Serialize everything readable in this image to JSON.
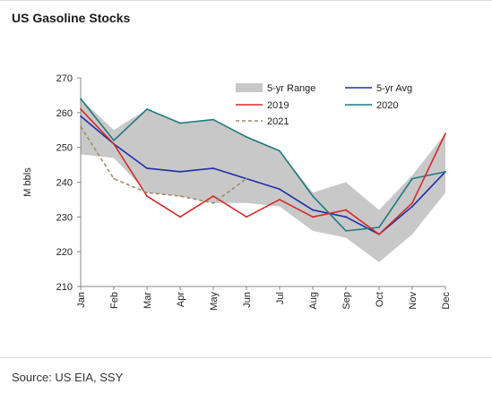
{
  "header": {
    "title": "US Gasoline Stocks"
  },
  "footer": {
    "source": "Source: US EIA, SSY"
  },
  "chart_data": {
    "type": "line",
    "title": "US Gasoline Stocks",
    "xlabel": "",
    "ylabel": "M bbls",
    "categories": [
      "Jan",
      "Feb",
      "Mar",
      "Apr",
      "May",
      "Jun",
      "Jul",
      "Aug",
      "Sep",
      "Oct",
      "Nov",
      "Dec"
    ],
    "ylim": [
      210,
      270
    ],
    "yticks": [
      210,
      220,
      230,
      240,
      250,
      260,
      270
    ],
    "grid": false,
    "legend_position": "top-right",
    "range": {
      "name": "5-yr Range",
      "color": "#c8c8c8",
      "high": [
        264,
        255,
        261,
        257,
        258,
        253,
        249,
        237,
        240,
        232,
        242,
        254
      ],
      "low": [
        248,
        247,
        237,
        236,
        234,
        234,
        233,
        226,
        224,
        217,
        225,
        237
      ]
    },
    "series": [
      {
        "name": "5-yr Avg",
        "color": "#1f2fa8",
        "dash": "",
        "values": [
          259,
          251,
          244,
          243,
          244,
          241,
          238,
          232,
          230,
          225,
          233,
          243
        ]
      },
      {
        "name": "2020",
        "color": "#1f7a80",
        "dash": "",
        "values": [
          264,
          252,
          261,
          257,
          258,
          253,
          249,
          236,
          226,
          227,
          241,
          243
        ]
      },
      {
        "name": "2019",
        "color": "#d42a2a",
        "dash": "",
        "values": [
          261,
          251,
          236,
          230,
          236,
          230,
          235,
          230,
          232,
          225,
          234,
          254
        ]
      },
      {
        "name": "2021",
        "color": "#a08a6a",
        "dash": "4,3",
        "values": [
          256,
          241,
          237,
          236,
          234,
          241,
          null,
          null,
          null,
          null,
          null,
          null
        ]
      }
    ],
    "legend": [
      {
        "label": "5-yr Range",
        "key": "range"
      },
      {
        "label": "5-yr Avg",
        "key": "5-yr Avg"
      },
      {
        "label": "2019",
        "key": "2019"
      },
      {
        "label": "2020",
        "key": "2020"
      },
      {
        "label": "2021",
        "key": "2021"
      }
    ]
  }
}
